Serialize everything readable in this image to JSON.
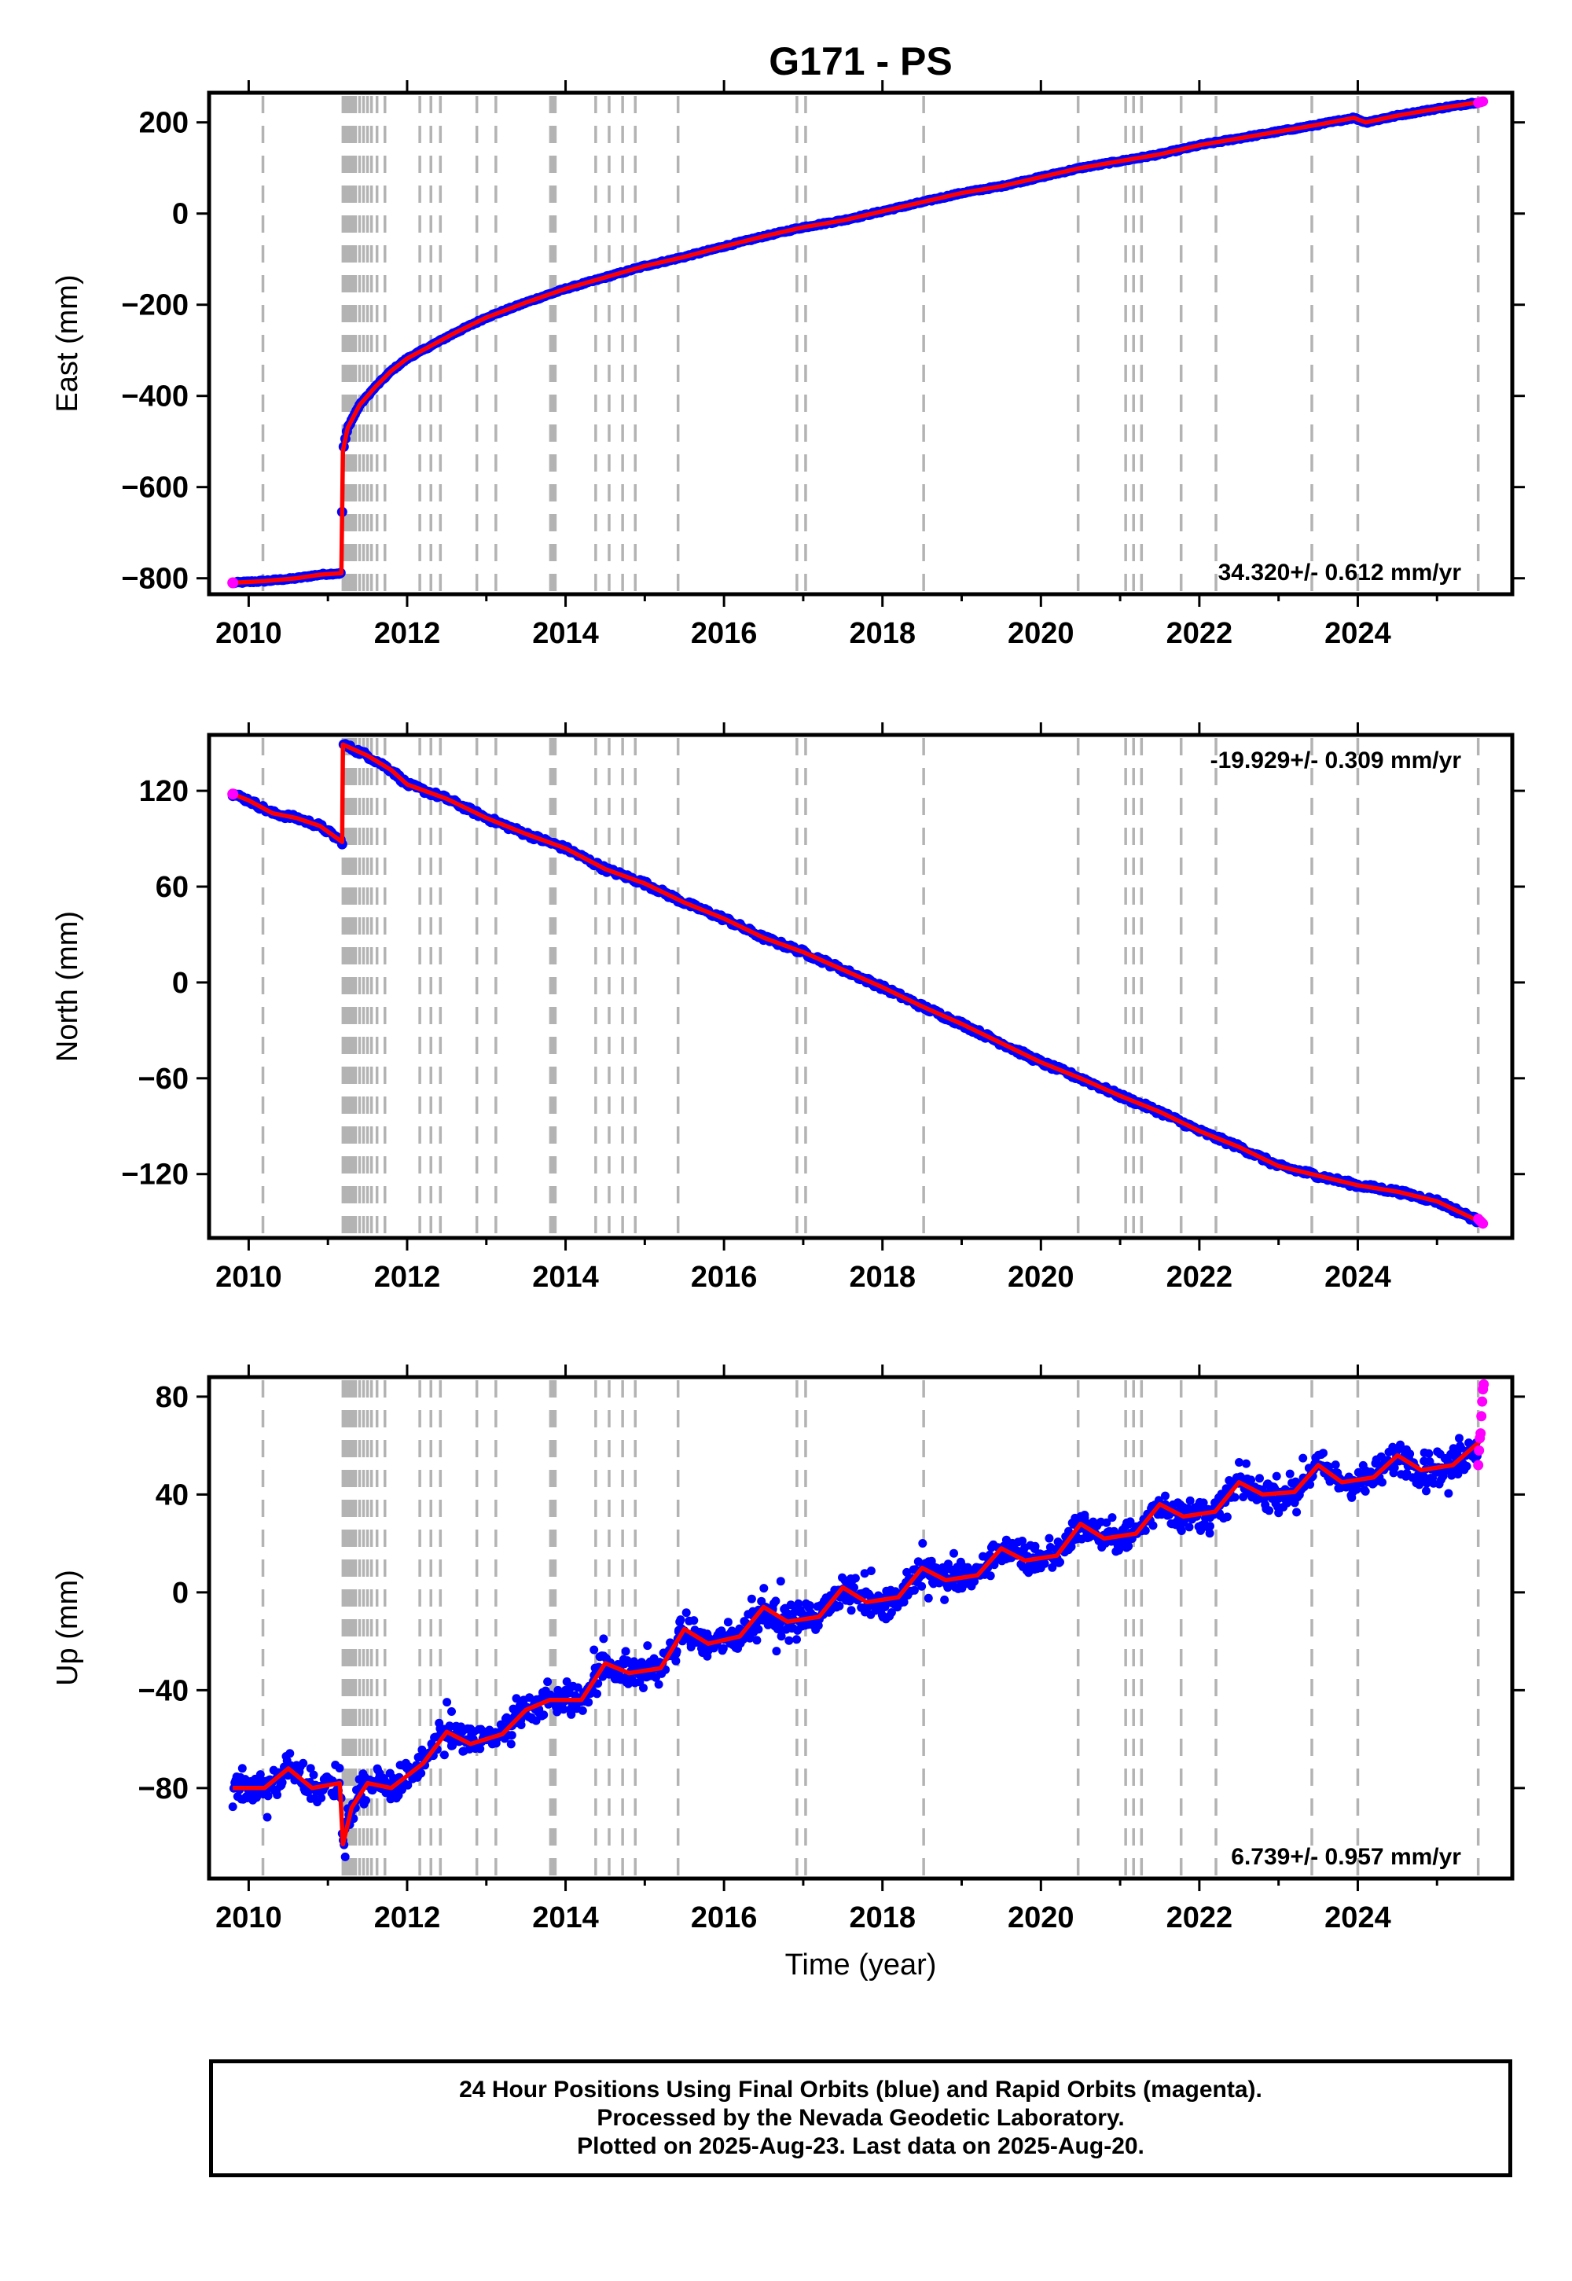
{
  "title": "G171 - PS",
  "xlabel": "Time (year)",
  "colors": {
    "final_orbits": "#0000ff",
    "rapid_orbits": "#ff00ff",
    "model": "#ff0000",
    "event_lines": "#b3b3b3"
  },
  "footer": {
    "line1": "24 Hour Positions Using Final Orbits (blue) and Rapid Orbits (magenta).",
    "line2": "Processed by the Nevada Geodetic Laboratory.",
    "line3": "Plotted on 2025-Aug-23. Last data on 2025-Aug-20."
  },
  "chart_data": [
    {
      "type": "scatter",
      "name": "east",
      "ylabel": "East (mm)",
      "rate_label": "34.320+/- 0.612 mm/yr",
      "rate_position": "bottom-right",
      "xlim": [
        2009.5,
        2025.95
      ],
      "ylim": [
        -835,
        265
      ],
      "xticks": [
        2010,
        2012,
        2014,
        2016,
        2018,
        2020,
        2022,
        2024
      ],
      "yticks": [
        -800,
        -600,
        -400,
        -200,
        0,
        200
      ],
      "x": [
        2009.8,
        2010.2,
        2010.6,
        2010.9,
        2011.17,
        2011.19,
        2011.25,
        2011.4,
        2011.6,
        2011.8,
        2012.0,
        2012.3,
        2012.6,
        2013.0,
        2013.5,
        2014.0,
        2014.5,
        2015.0,
        2015.5,
        2016.0,
        2016.5,
        2017.0,
        2017.5,
        2018.0,
        2018.5,
        2019.0,
        2019.5,
        2020.0,
        2020.5,
        2021.0,
        2021.5,
        2022.0,
        2022.5,
        2023.0,
        2023.5,
        2023.95,
        2024.1,
        2024.5,
        2025.0,
        2025.55
      ],
      "y": [
        -810,
        -806,
        -800,
        -792,
        -789,
        -520,
        -470,
        -420,
        -380,
        -345,
        -318,
        -290,
        -262,
        -228,
        -195,
        -165,
        -140,
        -115,
        -95,
        -72,
        -50,
        -30,
        -15,
        5,
        25,
        45,
        60,
        80,
        100,
        115,
        130,
        150,
        165,
        180,
        195,
        210,
        200,
        215,
        230,
        245
      ],
      "rapid_x": [
        2025.52,
        2025.54,
        2025.56,
        2025.58
      ],
      "rapid_y": [
        243,
        244,
        245,
        246
      ]
    },
    {
      "type": "scatter",
      "name": "north",
      "ylabel": "North (mm)",
      "rate_label": "-19.929+/- 0.309 mm/yr",
      "rate_position": "top-right",
      "xlim": [
        2009.5,
        2025.95
      ],
      "ylim": [
        -160,
        155
      ],
      "xticks": [
        2010,
        2012,
        2014,
        2016,
        2018,
        2020,
        2022,
        2024
      ],
      "yticks": [
        -120,
        -60,
        0,
        60,
        120
      ],
      "x": [
        2009.8,
        2010.0,
        2010.3,
        2010.6,
        2010.9,
        2011.18,
        2011.19,
        2011.5,
        2011.8,
        2012.0,
        2012.5,
        2013.0,
        2013.5,
        2014.0,
        2014.5,
        2015.0,
        2015.5,
        2016.0,
        2016.5,
        2017.0,
        2017.5,
        2018.0,
        2018.5,
        2019.0,
        2019.5,
        2020.0,
        2020.5,
        2021.0,
        2021.5,
        2022.0,
        2022.5,
        2023.0,
        2023.5,
        2024.0,
        2024.5,
        2025.0,
        2025.55
      ],
      "y": [
        118,
        114,
        106,
        103,
        98,
        88,
        149,
        142,
        133,
        124,
        115,
        103,
        93,
        84,
        71,
        62,
        50,
        40,
        28,
        19,
        8,
        -3,
        -15,
        -26,
        -38,
        -50,
        -60,
        -71,
        -81,
        -93,
        -103,
        -115,
        -121,
        -127,
        -131,
        -137,
        -150
      ],
      "rapid_x": [
        2025.52,
        2025.54,
        2025.56,
        2025.58
      ],
      "rapid_y": [
        -148,
        -149,
        -150,
        -151
      ]
    },
    {
      "type": "scatter",
      "name": "up",
      "ylabel": "Up (mm)",
      "rate_label": "6.739+/- 0.957 mm/yr",
      "rate_position": "bottom-right",
      "xlim": [
        2009.5,
        2025.95
      ],
      "ylim": [
        -117,
        88
      ],
      "xticks": [
        2010,
        2012,
        2014,
        2016,
        2018,
        2020,
        2022,
        2024
      ],
      "yticks": [
        -80,
        -40,
        0,
        40,
        80
      ],
      "x": [
        2009.8,
        2010.2,
        2010.5,
        2010.8,
        2011.15,
        2011.19,
        2011.3,
        2011.5,
        2011.8,
        2012.2,
        2012.5,
        2012.8,
        2013.2,
        2013.5,
        2013.8,
        2014.2,
        2014.5,
        2014.8,
        2015.2,
        2015.5,
        2015.8,
        2016.2,
        2016.5,
        2016.8,
        2017.2,
        2017.5,
        2017.8,
        2018.2,
        2018.5,
        2018.8,
        2019.2,
        2019.5,
        2019.8,
        2020.2,
        2020.5,
        2020.8,
        2021.2,
        2021.5,
        2021.8,
        2022.2,
        2022.5,
        2022.8,
        2023.2,
        2023.5,
        2023.8,
        2024.2,
        2024.5,
        2024.8,
        2025.2,
        2025.55
      ],
      "y": [
        -80,
        -80,
        -72,
        -80,
        -78,
        -103,
        -88,
        -78,
        -80,
        -70,
        -57,
        -62,
        -58,
        -48,
        -44,
        -44,
        -29,
        -33,
        -31,
        -15,
        -21,
        -18,
        -6,
        -12,
        -10,
        2,
        -4,
        -2,
        10,
        5,
        7,
        18,
        13,
        15,
        28,
        22,
        24,
        36,
        31,
        33,
        45,
        40,
        41,
        52,
        45,
        47,
        56,
        50,
        52,
        62
      ],
      "rapid_x": [
        2025.52,
        2025.53,
        2025.54,
        2025.55,
        2025.56,
        2025.57,
        2025.58,
        2025.59
      ],
      "rapid_y": [
        52,
        58,
        63,
        65,
        72,
        78,
        83,
        85
      ],
      "scatter_noise_mm": 4.5
    }
  ],
  "event_lines": [
    2010.18,
    2011.19,
    2011.21,
    2011.23,
    2011.25,
    2011.27,
    2011.29,
    2011.32,
    2011.35,
    2011.4,
    2011.45,
    2011.5,
    2011.55,
    2011.62,
    2011.72,
    2012.16,
    2012.3,
    2012.42,
    2012.88,
    2013.12,
    2013.81,
    2013.84,
    2013.87,
    2014.38,
    2014.55,
    2014.72,
    2014.88,
    2015.42,
    2016.92,
    2017.03,
    2018.52,
    2020.47,
    2021.07,
    2021.17,
    2021.27,
    2021.77,
    2022.21,
    2023.42,
    2024.0,
    2025.52
  ]
}
